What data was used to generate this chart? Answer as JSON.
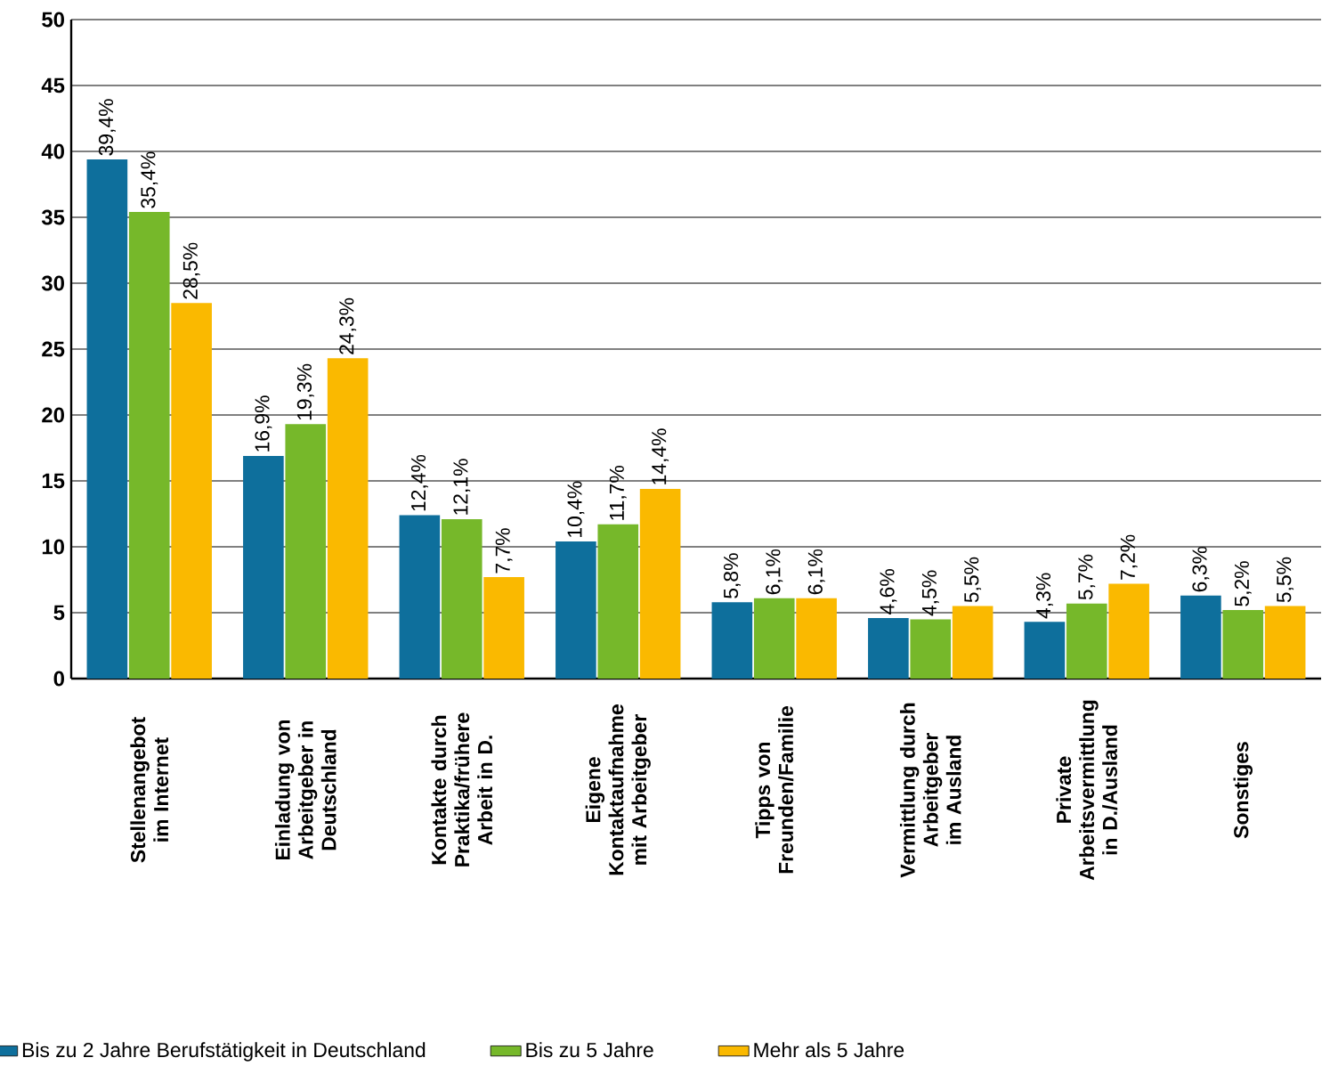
{
  "chart_data": {
    "type": "bar",
    "categories": [
      "Stellenangebot im Internet",
      "Einladung von Arbeitgeber in Deutschland",
      "Kontakte durch Praktika/frühere Arbeit in D.",
      "Eigene Kontaktaufnahme mit Arbeitgeber",
      "Tipps von Freunden/Familie",
      "Vermittlung durch Arbeitgeber im Ausland",
      "Private Arbeitsvermittlung in D./Ausland",
      "Sonstiges"
    ],
    "series": [
      {
        "name": "Bis zu 2 Jahre Berufstätigkeit in Deutschland",
        "color": "#0e6f9c",
        "values": [
          39.4,
          16.9,
          12.4,
          10.4,
          5.8,
          4.6,
          4.3,
          6.3
        ],
        "value_labels": [
          "39,4%",
          "16,9%",
          "12,4%",
          "10,4%",
          "5,8%",
          "4,6%",
          "4,3%",
          "6,3%"
        ]
      },
      {
        "name": "Bis zu 5 Jahre",
        "color": "#76b82a",
        "values": [
          35.4,
          19.3,
          12.1,
          11.7,
          6.1,
          4.5,
          5.7,
          5.2
        ],
        "value_labels": [
          "35,4%",
          "19,3%",
          "12,1%",
          "11,7%",
          "6,1%",
          "4,5%",
          "5,7%",
          "5,2%"
        ]
      },
      {
        "name": "Mehr als 5 Jahre",
        "color": "#fab900",
        "values": [
          28.5,
          24.3,
          7.7,
          14.4,
          6.1,
          5.5,
          7.2,
          5.5
        ],
        "value_labels": [
          "28,5%",
          "24,3%",
          "7,7%",
          "14,4%",
          "6,1%",
          "5,5%",
          "7,2%",
          "5,5%"
        ]
      }
    ],
    "ylim": [
      0,
      50
    ],
    "yticks": [
      0,
      5,
      10,
      15,
      20,
      25,
      30,
      35,
      40,
      45,
      50
    ],
    "grid": "y",
    "legend": "bottom"
  }
}
